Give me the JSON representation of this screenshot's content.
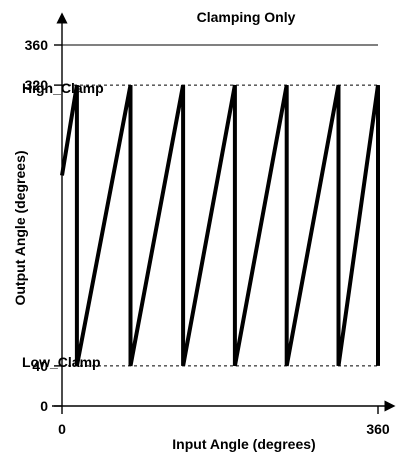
{
  "title": "Clamping Only",
  "xlabel": "Input Angle (degrees)",
  "ylabel": "Output Angle (degrees)",
  "labels": {
    "high_clamp": "High_Clamp",
    "low_clamp": "Low_Clamp"
  },
  "chart_data": {
    "type": "line",
    "title": "Clamping Only",
    "xlabel": "Input Angle (degrees)",
    "ylabel": "Output Angle (degrees)",
    "xlim": [
      0,
      360
    ],
    "ylim": [
      0,
      360
    ],
    "x_ticks": [
      {
        "value": 0,
        "label": "0"
      },
      {
        "value": 360,
        "label": "360"
      }
    ],
    "y_ticks": [
      {
        "value": 0,
        "label": "0"
      },
      {
        "value": 40,
        "label": "40"
      },
      {
        "value": 320,
        "label": "320"
      },
      {
        "value": 360,
        "label": "360"
      }
    ],
    "reference_lines": [
      {
        "y": 360,
        "style": "solid"
      },
      {
        "y": 320,
        "style": "dashed"
      },
      {
        "y": 40,
        "style": "dashed"
      }
    ],
    "annotations": [
      {
        "text": "High_Clamp",
        "y": 320
      },
      {
        "text": "Low_Clamp",
        "y": 40
      }
    ],
    "series": [
      {
        "x": [
          0,
          17,
          17,
          78,
          78,
          138,
          138,
          197,
          197,
          256,
          256,
          315,
          315,
          360,
          360
        ],
        "y": [
          230,
          320,
          40,
          320,
          40,
          320,
          40,
          320,
          40,
          320,
          40,
          320,
          40,
          320,
          40
        ]
      }
    ],
    "grid": false,
    "legend": "none"
  }
}
